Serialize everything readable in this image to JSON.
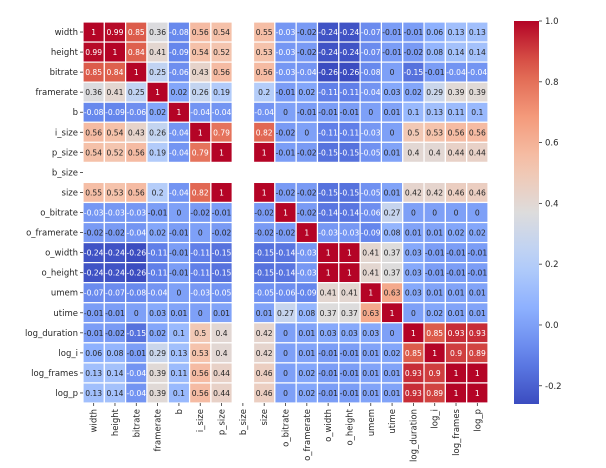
{
  "chart_data": {
    "type": "heatmap",
    "title": "",
    "labels": [
      "width",
      "height",
      "bitrate",
      "framerate",
      "b",
      "i_size",
      "p_size",
      "b_size",
      "size",
      "o_bitrate",
      "o_framerate",
      "o_width",
      "o_height",
      "umem",
      "utime",
      "log_duration",
      "log_i",
      "log_frames",
      "log_p"
    ],
    "values": [
      [
        1,
        0.99,
        0.85,
        0.36,
        -0.08,
        0.56,
        0.54,
        null,
        0.55,
        -0.03,
        -0.02,
        -0.24,
        -0.24,
        -0.07,
        -0.01,
        -0.01,
        0.06,
        0.13,
        0.13
      ],
      [
        0.99,
        1,
        0.84,
        0.41,
        -0.09,
        0.54,
        0.52,
        null,
        0.53,
        -0.03,
        -0.02,
        -0.24,
        -0.24,
        -0.07,
        -0.01,
        -0.02,
        0.08,
        0.14,
        0.14
      ],
      [
        0.85,
        0.84,
        1,
        0.25,
        -0.06,
        0.43,
        0.56,
        null,
        0.56,
        -0.03,
        -0.04,
        -0.26,
        -0.26,
        -0.08,
        -0.0,
        -0.15,
        -0.01,
        -0.04,
        -0.04
      ],
      [
        0.36,
        0.41,
        0.25,
        1,
        0.02,
        0.26,
        0.19,
        null,
        0.2,
        -0.01,
        0.02,
        -0.11,
        -0.11,
        -0.04,
        0.03,
        0.02,
        0.29,
        0.39,
        0.39
      ],
      [
        -0.08,
        -0.09,
        -0.06,
        0.02,
        1,
        -0.04,
        -0.04,
        null,
        -0.04,
        0,
        -0.01,
        -0.01,
        -0.01,
        -0.0,
        0.01,
        0.1,
        0.13,
        0.11,
        0.1
      ],
      [
        0.56,
        0.54,
        0.43,
        0.26,
        -0.04,
        1,
        0.79,
        null,
        0.82,
        -0.02,
        0,
        -0.11,
        -0.11,
        -0.03,
        -0.0,
        0.5,
        0.53,
        0.56,
        0.56
      ],
      [
        0.54,
        0.52,
        0.56,
        0.19,
        -0.04,
        0.79,
        1,
        null,
        1,
        -0.01,
        -0.02,
        -0.15,
        -0.15,
        -0.05,
        0.01,
        0.4,
        0.4,
        0.44,
        0.44
      ],
      [
        null,
        null,
        null,
        null,
        null,
        null,
        null,
        null,
        null,
        null,
        null,
        null,
        null,
        null,
        null,
        null,
        null,
        null,
        null
      ],
      [
        0.55,
        0.53,
        0.56,
        0.2,
        -0.04,
        0.82,
        1,
        null,
        1,
        -0.02,
        -0.02,
        -0.15,
        -0.15,
        -0.05,
        0.01,
        0.42,
        0.42,
        0.46,
        0.46
      ],
      [
        -0.03,
        -0.03,
        -0.03,
        -0.01,
        0,
        -0.02,
        -0.01,
        null,
        -0.02,
        1,
        -0.02,
        -0.14,
        -0.14,
        -0.06,
        0.27,
        0,
        0,
        -0.0,
        -0.0
      ],
      [
        -0.02,
        -0.02,
        -0.04,
        0.02,
        -0.01,
        0,
        -0.02,
        null,
        -0.02,
        -0.02,
        1,
        -0.03,
        -0.03,
        -0.09,
        0.08,
        0.01,
        0.01,
        0.02,
        0.02
      ],
      [
        -0.24,
        -0.24,
        -0.26,
        -0.11,
        -0.01,
        -0.11,
        -0.15,
        null,
        -0.15,
        -0.14,
        -0.03,
        1,
        1,
        0.41,
        0.37,
        0.03,
        -0.01,
        -0.01,
        -0.01
      ],
      [
        -0.24,
        -0.24,
        -0.26,
        -0.11,
        -0.01,
        -0.11,
        -0.15,
        null,
        -0.15,
        -0.14,
        -0.03,
        1,
        1,
        0.41,
        0.37,
        0.03,
        -0.01,
        -0.01,
        -0.01
      ],
      [
        -0.07,
        -0.07,
        -0.08,
        -0.04,
        -0.0,
        -0.03,
        -0.05,
        null,
        -0.05,
        -0.06,
        -0.09,
        0.41,
        0.41,
        1,
        0.63,
        0.03,
        0.01,
        0.01,
        0.01
      ],
      [
        -0.01,
        -0.01,
        -0.0,
        0.03,
        0.01,
        -0.0,
        0.01,
        null,
        0.01,
        0.27,
        0.08,
        0.37,
        0.37,
        0.63,
        1,
        0,
        0.02,
        0.01,
        0.01
      ],
      [
        -0.01,
        -0.02,
        -0.15,
        0.02,
        0.1,
        0.5,
        0.4,
        null,
        0.42,
        0,
        0.01,
        0.03,
        0.03,
        0.03,
        0,
        1,
        0.85,
        0.93,
        0.93
      ],
      [
        0.06,
        0.08,
        -0.01,
        0.29,
        0.13,
        0.53,
        0.4,
        null,
        0.42,
        0,
        0.01,
        -0.01,
        -0.01,
        0.01,
        0.02,
        0.85,
        1,
        0.9,
        0.89
      ],
      [
        0.13,
        0.14,
        -0.04,
        0.39,
        0.11,
        0.56,
        0.44,
        null,
        0.46,
        -0.0,
        0.02,
        -0.01,
        -0.01,
        0.01,
        0.01,
        0.93,
        0.9,
        1,
        1
      ],
      [
        0.13,
        0.14,
        -0.04,
        0.39,
        0.1,
        0.56,
        0.44,
        null,
        0.46,
        -0.0,
        0.02,
        -0.01,
        -0.01,
        0.01,
        0.01,
        0.93,
        0.89,
        1,
        1
      ]
    ],
    "colormap": "coolwarm",
    "vmin": -0.26,
    "vmax": 1.0,
    "annotations": true,
    "colorbar": {
      "ticks": [
        "1.0",
        "0.8",
        "0.6",
        "0.4",
        "0.2",
        "0.0",
        "-0.2"
      ],
      "tick_values": [
        1.0,
        0.8,
        0.6,
        0.4,
        0.2,
        0.0,
        -0.2
      ],
      "placement": "right"
    }
  }
}
